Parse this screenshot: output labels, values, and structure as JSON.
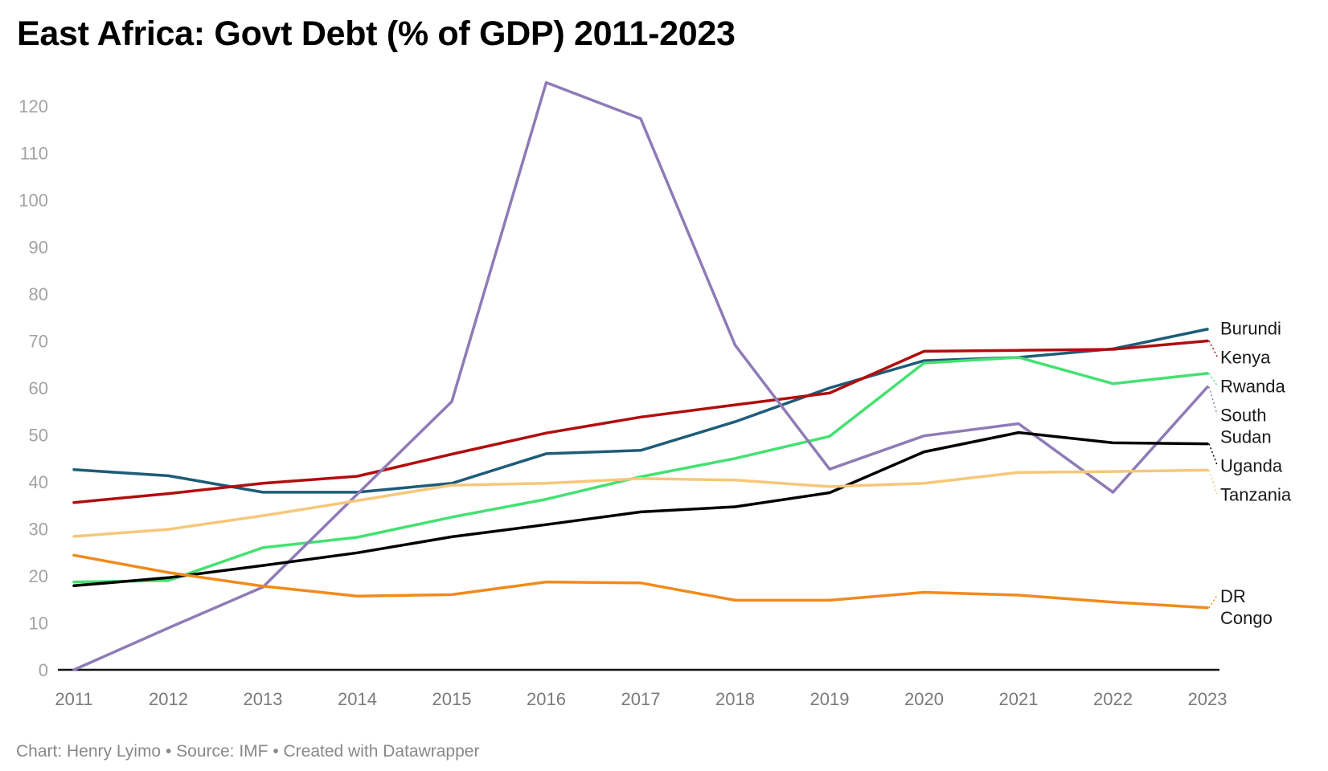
{
  "title": "East Africa: Govt Debt (% of GDP) 2011-2023",
  "footer": "Chart: Henry Lyimo • Source: IMF • Created with Datawrapper",
  "chart_data": {
    "type": "line",
    "title": "East Africa: Govt Debt (% of GDP) 2011-2023",
    "xlabel": "",
    "ylabel": "",
    "x": [
      2011,
      2012,
      2013,
      2014,
      2015,
      2016,
      2017,
      2018,
      2019,
      2020,
      2021,
      2022,
      2023
    ],
    "x_tick_labels": [
      "2011",
      "2012",
      "2013",
      "2014",
      "2015",
      "2016",
      "2017",
      "2018",
      "2019",
      "2020",
      "2021",
      "2022",
      "2023"
    ],
    "ylim": [
      0,
      120
    ],
    "y_ticks": [
      0,
      10,
      20,
      30,
      40,
      50,
      60,
      70,
      80,
      90,
      100,
      110,
      120
    ],
    "y_tick_labels": [
      "0",
      "10",
      "20",
      "30",
      "40",
      "50",
      "60",
      "70",
      "80",
      "90",
      "100",
      "110",
      "120"
    ],
    "grid": false,
    "legend": "direct labels at right end of lines",
    "series": [
      {
        "name": "Burundi",
        "label_lines": [
          "Burundi"
        ],
        "color": "#1e5c78",
        "values": [
          42.6,
          41.3,
          37.8,
          37.8,
          39.7,
          46.0,
          46.7,
          52.8,
          60.0,
          65.8,
          66.5,
          68.3,
          72.5
        ]
      },
      {
        "name": "Kenya",
        "label_lines": [
          "Kenya"
        ],
        "color": "#b10d0d",
        "values": [
          35.6,
          37.5,
          39.7,
          41.2,
          45.9,
          50.4,
          53.8,
          56.4,
          58.9,
          67.8,
          68.0,
          68.2,
          70.0
        ]
      },
      {
        "name": "Rwanda",
        "label_lines": [
          "Rwanda"
        ],
        "color": "#44e172",
        "values": [
          18.7,
          19.0,
          26.0,
          28.2,
          32.5,
          36.3,
          41.1,
          45.0,
          49.7,
          65.3,
          66.5,
          60.9,
          63.1
        ]
      },
      {
        "name": "South Sudan",
        "label_lines": [
          "South",
          "Sudan"
        ],
        "color": "#8f7bb6",
        "values": [
          0.0,
          8.9,
          17.6,
          37.4,
          57.1,
          125.0,
          117.3,
          69.1,
          42.7,
          49.8,
          52.4,
          37.8,
          60.2
        ]
      },
      {
        "name": "Uganda",
        "label_lines": [
          "Uganda"
        ],
        "color": "#000000",
        "values": [
          17.9,
          19.6,
          22.2,
          24.9,
          28.3,
          30.9,
          33.6,
          34.7,
          37.7,
          46.4,
          50.5,
          48.3,
          48.1
        ]
      },
      {
        "name": "Tanzania",
        "label_lines": [
          "Tanzania"
        ],
        "color": "#f6c77a",
        "values": [
          28.4,
          29.9,
          32.8,
          36.0,
          39.3,
          39.7,
          40.7,
          40.4,
          39.0,
          39.7,
          42.0,
          42.2,
          42.5
        ]
      },
      {
        "name": "DR Congo",
        "label_lines": [
          "DR",
          "Congo"
        ],
        "color": "#f28a1b",
        "values": [
          24.4,
          20.7,
          17.8,
          15.7,
          16.0,
          18.7,
          18.5,
          14.8,
          14.8,
          16.5,
          15.9,
          14.4,
          13.2
        ]
      }
    ]
  }
}
